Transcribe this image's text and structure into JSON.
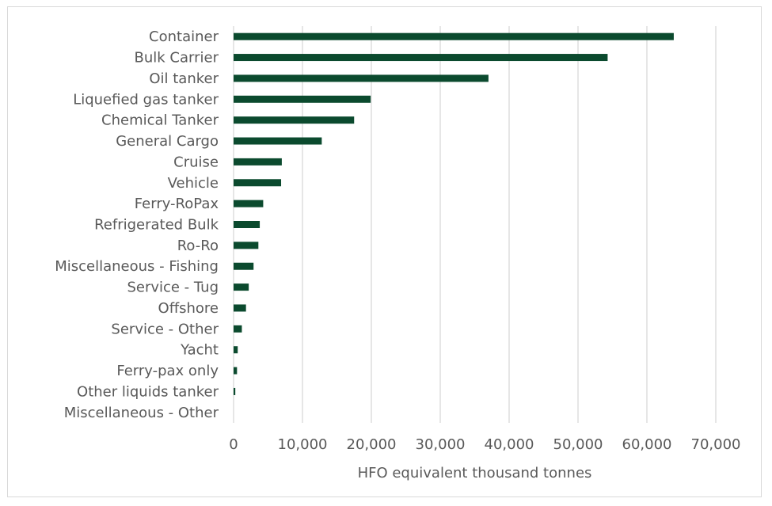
{
  "chart_data": {
    "type": "bar",
    "orientation": "horizontal",
    "categories": [
      "Container",
      "Bulk Carrier",
      "Oil tanker",
      "Liquefied gas tanker",
      "Chemical Tanker",
      "General Cargo",
      "Cruise",
      "Vehicle",
      "Ferry-RoPax",
      "Refrigerated Bulk",
      "Ro-Ro",
      "Miscellaneous - Fishing",
      "Service - Tug",
      "Offshore",
      "Service - Other",
      "Yacht",
      "Ferry-pax only",
      "Other liquids tanker",
      "Miscellaneous - Other"
    ],
    "values": [
      63900,
      54300,
      37000,
      19900,
      17500,
      12800,
      7000,
      6900,
      4300,
      3800,
      3600,
      2900,
      2200,
      1800,
      1200,
      600,
      500,
      250,
      0
    ],
    "xlabel": "HFO equivalent thousand tonnes",
    "ylabel": "",
    "xlim": [
      0,
      70000
    ],
    "xticks": [
      0,
      10000,
      20000,
      30000,
      40000,
      50000,
      60000,
      70000
    ],
    "xtick_labels": [
      "0",
      "10,000",
      "20,000",
      "30,000",
      "40,000",
      "50,000",
      "60,000",
      "70,000"
    ],
    "grid": "vertical",
    "legend": "none",
    "bar_color": "#0b4a2e",
    "grid_color": "#d9d9d9"
  }
}
